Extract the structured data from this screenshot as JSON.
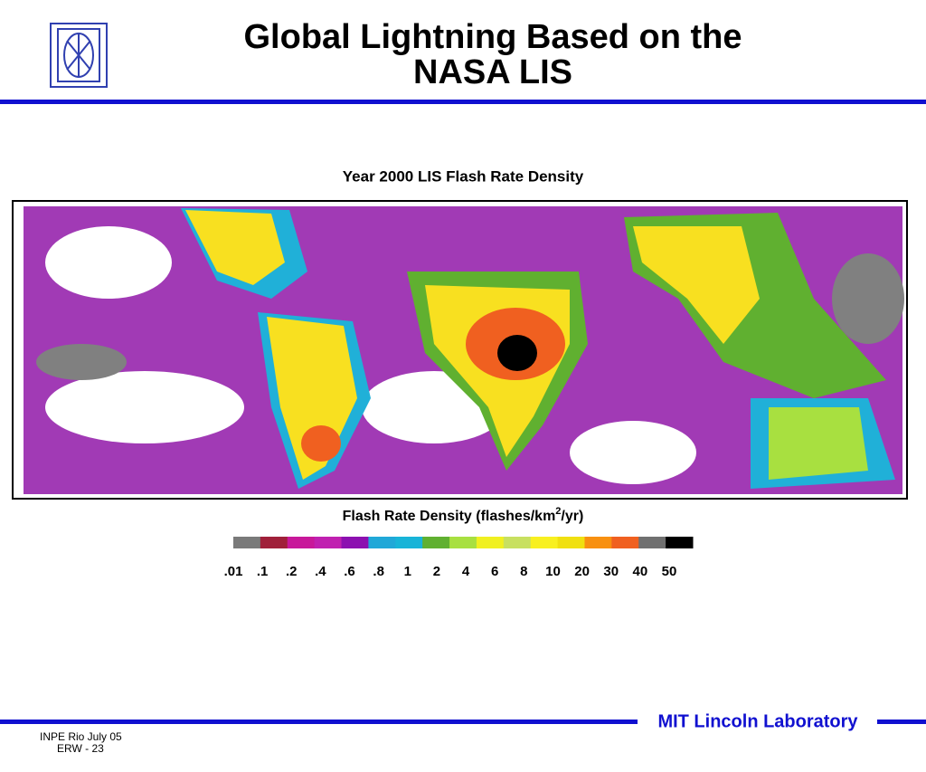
{
  "header": {
    "title_lines": [
      "Global Lightning Based on the",
      "NASA LIS"
    ]
  },
  "figure": {
    "title": "Year 2000 LIS Flash Rate Density",
    "colorbar": {
      "label": {
        "text": "Flash Rate Density (flashes/km",
        "superscript": "2",
        "suffix": "/yr)"
      },
      "labels": [
        ".01",
        ".1",
        ".2",
        ".4",
        ".6",
        ".8",
        "1",
        "2",
        "4",
        "6",
        "8",
        "10",
        "20",
        "30",
        "40",
        "50"
      ],
      "colors": [
        "#7a7a7a",
        "#a0203a",
        "#c8189a",
        "#c020b0",
        "#8c10b0",
        "#20a8d8",
        "#18b4d8",
        "#60b030",
        "#a8e040",
        "#f0f020",
        "#c8e060",
        "#f8f020",
        "#f0e010",
        "#f89010",
        "#f06020",
        "#707070",
        "#000000"
      ]
    }
  },
  "footer": {
    "lab": "MIT Lincoln Laboratory",
    "line1": "INPE Rio  July 05",
    "line2": "ERW - 23"
  }
}
